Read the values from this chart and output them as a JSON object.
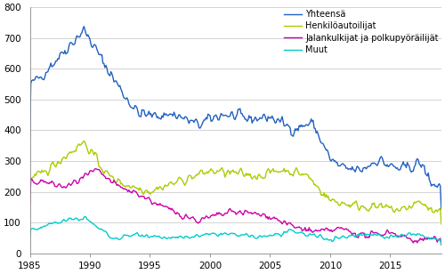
{
  "title": "",
  "ylabel": "",
  "xlabel": "",
  "xlim": [
    1985.0,
    2019.25
  ],
  "ylim": [
    0,
    800
  ],
  "yticks": [
    0,
    100,
    200,
    300,
    400,
    500,
    600,
    700,
    800
  ],
  "xticks": [
    1985,
    1990,
    1995,
    2000,
    2005,
    2010,
    2015
  ],
  "colors": {
    "Yhteensä": "#2060c0",
    "Henkilöautoilijat": "#aacc00",
    "Jalankulkijat ja polkupyöräilijät": "#cc00aa",
    "Muut": "#00cccc"
  },
  "legend_labels": [
    "Yhteensä",
    "Henkilöautoilijat",
    "Jalankulkijat ja polkupyöräilijät",
    "Muut"
  ],
  "background_color": "#ffffff",
  "grid_color": "#cccccc"
}
